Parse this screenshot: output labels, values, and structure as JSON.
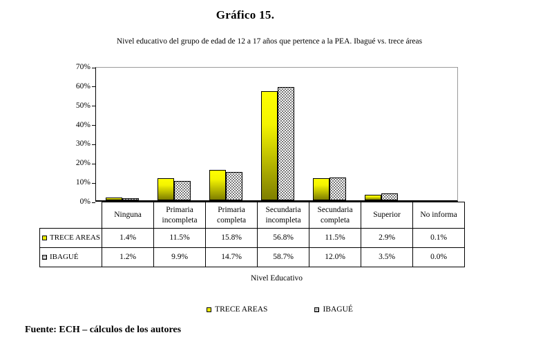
{
  "page": {
    "title": "Gráfico 15.",
    "subtitle": "Nivel educativo del grupo de edad de 12 a 17 años que pertence a la PEA. Ibagué vs. trece áreas",
    "source": "Fuente: ECH – cálculos de los autores"
  },
  "chart_data": {
    "type": "bar",
    "title": "Gráfico 15.",
    "subtitle": "Nivel educativo del grupo de edad de 12 a 17 años que pertence a la PEA. Ibagué vs. trece áreas",
    "xlabel": "Nivel Educativo",
    "ylabel": "",
    "ylim": [
      0,
      70
    ],
    "y_ticks": [
      "0%",
      "10%",
      "20%",
      "30%",
      "40%",
      "50%",
      "60%",
      "70%"
    ],
    "grid": false,
    "legend_position": "bottom",
    "categories": [
      "Ninguna",
      "Primaria incompleta",
      "Primaria completa",
      "Secundaria incompleta",
      "Secundaria completa",
      "Superior",
      "No informa"
    ],
    "series": [
      {
        "name": "TRECE AREAS",
        "style": "yellow-gradient",
        "values": [
          1.4,
          11.5,
          15.8,
          56.8,
          11.5,
          2.9,
          0.1
        ],
        "labels": [
          "1.4%",
          "11.5%",
          "15.8%",
          "56.8%",
          "11.5%",
          "2.9%",
          "0.1%"
        ]
      },
      {
        "name": "IBAGUÉ",
        "style": "white-dotted",
        "values": [
          1.2,
          9.9,
          14.7,
          58.7,
          12.0,
          3.5,
          0.0
        ],
        "labels": [
          "1.2%",
          "9.9%",
          "14.7%",
          "58.7%",
          "12.0%",
          "3.5%",
          "0.0%"
        ]
      }
    ],
    "colors": {
      "trece_top": "#ffff00",
      "trece_bottom": "#7e7e00",
      "ibague_fill": "#ffffff",
      "ibague_dot": "#4a4a4a",
      "axis": "#000000",
      "plot_frame_gray": "#9a9a9a"
    }
  }
}
